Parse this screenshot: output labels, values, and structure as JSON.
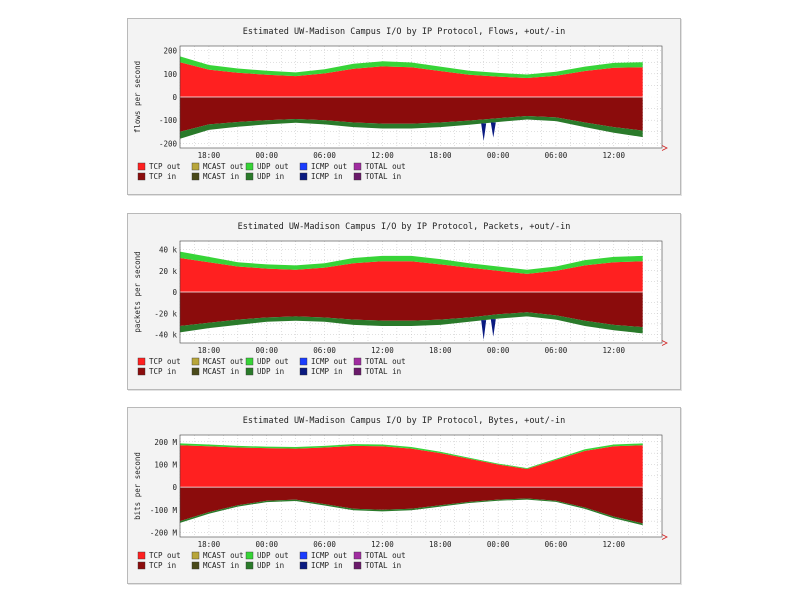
{
  "colors": {
    "tcp_out": "#ff2020",
    "tcp_in": "#8b0c0c",
    "mcast_out": "#b8a63a",
    "mcast_in": "#4a4a1a",
    "udp_out": "#37d437",
    "udp_in": "#2a7a2a",
    "icmp_out": "#1a3cff",
    "icmp_in": "#0a1a80",
    "total_out": "#a02ca0",
    "total_in": "#6a1a6a",
    "grid": "#c0c0c0",
    "plot_bg": "#ffffff",
    "arrow": "#d02020"
  },
  "legend": [
    {
      "key": "tcp_out",
      "label": "TCP out"
    },
    {
      "key": "mcast_out",
      "label": "MCAST out"
    },
    {
      "key": "udp_out",
      "label": "UDP out"
    },
    {
      "key": "icmp_out",
      "label": "ICMP out"
    },
    {
      "key": "total_out",
      "label": "TOTAL out"
    },
    {
      "key": "tcp_in",
      "label": "TCP in"
    },
    {
      "key": "mcast_in",
      "label": "MCAST in"
    },
    {
      "key": "udp_in",
      "label": "UDP in"
    },
    {
      "key": "icmp_in",
      "label": "ICMP in"
    },
    {
      "key": "total_in",
      "label": "TOTAL in"
    }
  ],
  "chart_data": [
    {
      "type": "area",
      "title": "Estimated UW-Madison Campus I/O by IP Protocol, Flows, +out/-in",
      "ylabel": "flows per second",
      "ylim": [
        -220,
        220
      ],
      "yticks": [
        {
          "value": 200,
          "label": "200"
        },
        {
          "value": 100,
          "label": "100"
        },
        {
          "value": 0,
          "label": "0"
        },
        {
          "value": -100,
          "label": "-100"
        },
        {
          "value": -200,
          "label": "-200"
        }
      ],
      "xticks": [
        "18:00",
        "00:00",
        "06:00",
        "12:00",
        "18:00",
        "00:00",
        "06:00",
        "12:00"
      ],
      "x_hours": [
        0,
        3,
        6,
        9,
        12,
        15,
        18,
        21,
        24,
        27,
        30,
        33,
        36,
        39,
        42,
        45,
        48
      ],
      "series": [
        {
          "key": "tcp_out",
          "values": [
            150,
            118,
            105,
            96,
            90,
            102,
            122,
            132,
            128,
            112,
            96,
            88,
            82,
            92,
            112,
            126,
            128
          ]
        },
        {
          "key": "udp_out",
          "values": [
            25,
            20,
            18,
            17,
            16,
            18,
            21,
            22,
            21,
            19,
            17,
            16,
            15,
            17,
            19,
            21,
            22
          ]
        },
        {
          "key": "tcp_in",
          "values": [
            -150,
            -118,
            -108,
            -100,
            -95,
            -100,
            -110,
            -115,
            -115,
            -110,
            -102,
            -92,
            -82,
            -88,
            -110,
            -130,
            -145
          ]
        },
        {
          "key": "udp_in",
          "values": [
            -30,
            -24,
            -20,
            -18,
            -16,
            -18,
            -20,
            -21,
            -21,
            -20,
            -18,
            -16,
            -15,
            -16,
            -20,
            -24,
            -28
          ]
        }
      ],
      "spikes": [
        {
          "x": 31.5,
          "value": -190
        },
        {
          "x": 32.5,
          "value": -175
        }
      ]
    },
    {
      "type": "area",
      "title": "Estimated UW-Madison Campus I/O by IP Protocol, Packets, +out/-in",
      "ylabel": "packets per second",
      "ylim": [
        -48,
        48
      ],
      "yticks": [
        {
          "value": 40,
          "label": "40 k"
        },
        {
          "value": 20,
          "label": "20 k"
        },
        {
          "value": 0,
          "label": "0"
        },
        {
          "value": -20,
          "label": "-20 k"
        },
        {
          "value": -40,
          "label": "-40 k"
        }
      ],
      "xticks": [
        "18:00",
        "00:00",
        "06:00",
        "12:00",
        "18:00",
        "00:00",
        "06:00",
        "12:00"
      ],
      "x_hours": [
        0,
        3,
        6,
        9,
        12,
        15,
        18,
        21,
        24,
        27,
        30,
        33,
        36,
        39,
        42,
        45,
        48
      ],
      "series": [
        {
          "key": "tcp_out",
          "values": [
            32,
            28,
            24,
            22,
            21,
            23,
            27,
            29,
            29,
            26,
            23,
            20,
            17,
            20,
            25,
            28,
            29
          ]
        },
        {
          "key": "udp_out",
          "values": [
            6,
            5,
            4,
            4,
            4,
            4,
            5,
            5,
            5,
            5,
            4,
            4,
            4,
            4,
            5,
            5,
            5
          ]
        },
        {
          "key": "tcp_in",
          "values": [
            -32,
            -29,
            -26,
            -24,
            -23,
            -24,
            -26,
            -27,
            -27,
            -26,
            -24,
            -21,
            -19,
            -22,
            -27,
            -31,
            -33
          ]
        },
        {
          "key": "udp_in",
          "values": [
            -6,
            -5,
            -5,
            -4,
            -4,
            -4,
            -5,
            -5,
            -5,
            -5,
            -4,
            -4,
            -4,
            -4,
            -5,
            -5,
            -6
          ]
        }
      ],
      "spikes": [
        {
          "x": 31.5,
          "value": -45
        },
        {
          "x": 32.5,
          "value": -42
        }
      ]
    },
    {
      "type": "area",
      "title": "Estimated UW-Madison Campus I/O by IP Protocol, Bytes, +out/-in",
      "ylabel": "bits per second",
      "ylim": [
        -220,
        230
      ],
      "yticks": [
        {
          "value": 200,
          "label": "200 M"
        },
        {
          "value": 100,
          "label": "100 M"
        },
        {
          "value": 0,
          "label": "0"
        },
        {
          "value": -100,
          "label": "-100 M"
        },
        {
          "value": -200,
          "label": "-200 M"
        }
      ],
      "xticks": [
        "18:00",
        "00:00",
        "06:00",
        "12:00",
        "18:00",
        "00:00",
        "06:00",
        "12:00"
      ],
      "x_hours": [
        0,
        3,
        6,
        9,
        12,
        15,
        18,
        21,
        24,
        27,
        30,
        33,
        36,
        39,
        42,
        45,
        48
      ],
      "series": [
        {
          "key": "tcp_out",
          "values": [
            185,
            180,
            175,
            172,
            170,
            175,
            182,
            180,
            170,
            150,
            125,
            100,
            80,
            120,
            160,
            180,
            185
          ]
        },
        {
          "key": "udp_out",
          "values": [
            8,
            8,
            7,
            7,
            7,
            7,
            8,
            8,
            7,
            6,
            5,
            4,
            4,
            5,
            7,
            8,
            8
          ]
        },
        {
          "key": "tcp_in",
          "values": [
            -150,
            -110,
            -80,
            -60,
            -55,
            -75,
            -95,
            -100,
            -95,
            -80,
            -65,
            -55,
            -50,
            -60,
            -90,
            -130,
            -160
          ]
        },
        {
          "key": "udp_in",
          "values": [
            -8,
            -7,
            -6,
            -6,
            -6,
            -6,
            -7,
            -7,
            -7,
            -6,
            -5,
            -5,
            -5,
            -5,
            -6,
            -7,
            -8
          ]
        }
      ],
      "spikes": []
    }
  ]
}
